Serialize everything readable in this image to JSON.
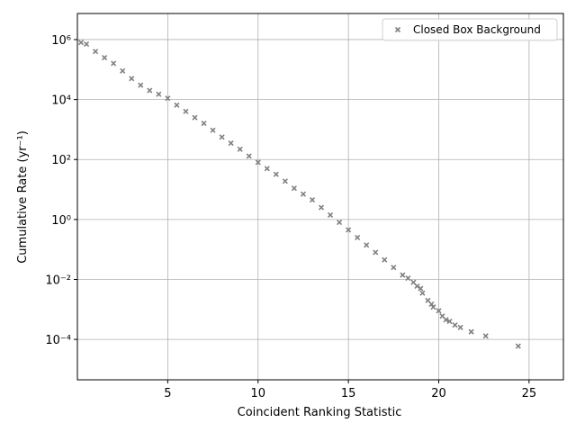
{
  "chart_data": {
    "type": "scatter",
    "xlabel": "Coincident Ranking Statistic",
    "ylabel": "Cumulative Rate (yr⁻¹)",
    "yscale": "log",
    "grid": true,
    "legend": "upper right",
    "xlim": [
      0,
      26.9
    ],
    "ylim": [
      4.5e-06,
      7400000
    ],
    "xticks": [
      5,
      10,
      15,
      20,
      25
    ],
    "yticks": [
      {
        "value": 1000000,
        "label": "10⁶"
      },
      {
        "value": 10000,
        "label": "10⁴"
      },
      {
        "value": 100,
        "label": "10²"
      },
      {
        "value": 1,
        "label": "10⁰"
      },
      {
        "value": 0.01,
        "label": "10⁻²"
      },
      {
        "value": 0.0001,
        "label": "10⁻⁴"
      }
    ],
    "series": [
      {
        "name": "Closed Box Background",
        "color": "#808080",
        "x": [
          0.2,
          0.5,
          1,
          1.5,
          2,
          2.5,
          3,
          3.5,
          4,
          4.5,
          5,
          5.5,
          6,
          6.5,
          7,
          7.5,
          8,
          8.5,
          9,
          9.5,
          10,
          10.5,
          11,
          11.5,
          12,
          12.5,
          13,
          13.5,
          14,
          14.5,
          15,
          15.5,
          16,
          16.5,
          17,
          17.5,
          18,
          18.3,
          18.6,
          18.8,
          19,
          19.1,
          19.4,
          19.6,
          19.7,
          20,
          20.2,
          20.4,
          20.6,
          20.9,
          21.2,
          21.8,
          22.6,
          24.4
        ],
        "values": [
          800000,
          700000,
          400000,
          250000,
          160000,
          90000,
          50000,
          30000,
          20000,
          15000,
          11000,
          6500,
          4000,
          2500,
          1600,
          950,
          560,
          350,
          220,
          130,
          80,
          50,
          32,
          19,
          11,
          7,
          4.5,
          2.5,
          1.4,
          0.8,
          0.45,
          0.25,
          0.14,
          0.08,
          0.045,
          0.025,
          0.014,
          0.011,
          0.008,
          0.006,
          0.005,
          0.0035,
          0.002,
          0.0015,
          0.0012,
          0.0009,
          0.0006,
          0.00045,
          0.0004,
          0.0003,
          0.00025,
          0.00018,
          0.00013,
          6e-05
        ]
      }
    ]
  }
}
